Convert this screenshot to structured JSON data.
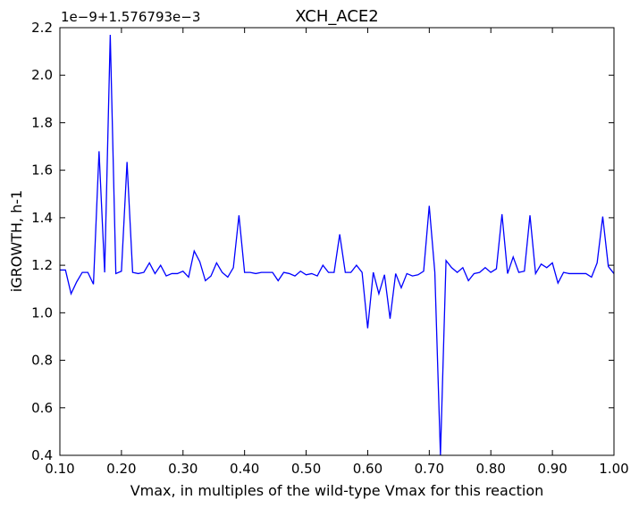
{
  "chart_data": {
    "type": "line",
    "title": "XCH_ACE2",
    "xlabel": "Vmax, in multiples of the wild-type Vmax for this reaction",
    "ylabel": "iGROWTH, h-1",
    "y_offset_label": "1e−9+1.576793e−3",
    "xlim": [
      0.1,
      1.0
    ],
    "ylim": [
      0.4,
      2.2
    ],
    "grid": false,
    "line_color": "#0000ff",
    "x_ticks": [
      "0.10",
      "0.20",
      "0.30",
      "0.40",
      "0.50",
      "0.60",
      "0.70",
      "0.80",
      "0.90",
      "1.00"
    ],
    "y_ticks": [
      "0.4",
      "0.6",
      "0.8",
      "1.0",
      "1.2",
      "1.4",
      "1.6",
      "1.8",
      "2.0",
      "2.2"
    ],
    "series": [
      {
        "x_start": 0.1,
        "x_step": 0.00909,
        "values": [
          1.18,
          1.18,
          1.08,
          1.13,
          1.17,
          1.17,
          1.12,
          1.68,
          1.17,
          2.17,
          1.165,
          1.175,
          1.635,
          1.17,
          1.165,
          1.17,
          1.21,
          1.165,
          1.2,
          1.155,
          1.165,
          1.165,
          1.175,
          1.15,
          1.26,
          1.215,
          1.135,
          1.155,
          1.21,
          1.17,
          1.15,
          1.19,
          1.41,
          1.17,
          1.17,
          1.165,
          1.17,
          1.17,
          1.17,
          1.135,
          1.17,
          1.165,
          1.155,
          1.175,
          1.16,
          1.165,
          1.155,
          1.2,
          1.17,
          1.17,
          1.33,
          1.17,
          1.17,
          1.2,
          1.17,
          0.935,
          1.17,
          1.08,
          1.16,
          0.975,
          1.165,
          1.105,
          1.165,
          1.155,
          1.16,
          1.175,
          1.45,
          1.17,
          0.4,
          1.22,
          1.19,
          1.17,
          1.19,
          1.135,
          1.165,
          1.17,
          1.19,
          1.17,
          1.185,
          1.415,
          1.165,
          1.235,
          1.17,
          1.175,
          1.41,
          1.165,
          1.205,
          1.19,
          1.21,
          1.125,
          1.17,
          1.165,
          1.165,
          1.165,
          1.165,
          1.15,
          1.21,
          1.405,
          1.195,
          1.165
        ]
      }
    ]
  }
}
